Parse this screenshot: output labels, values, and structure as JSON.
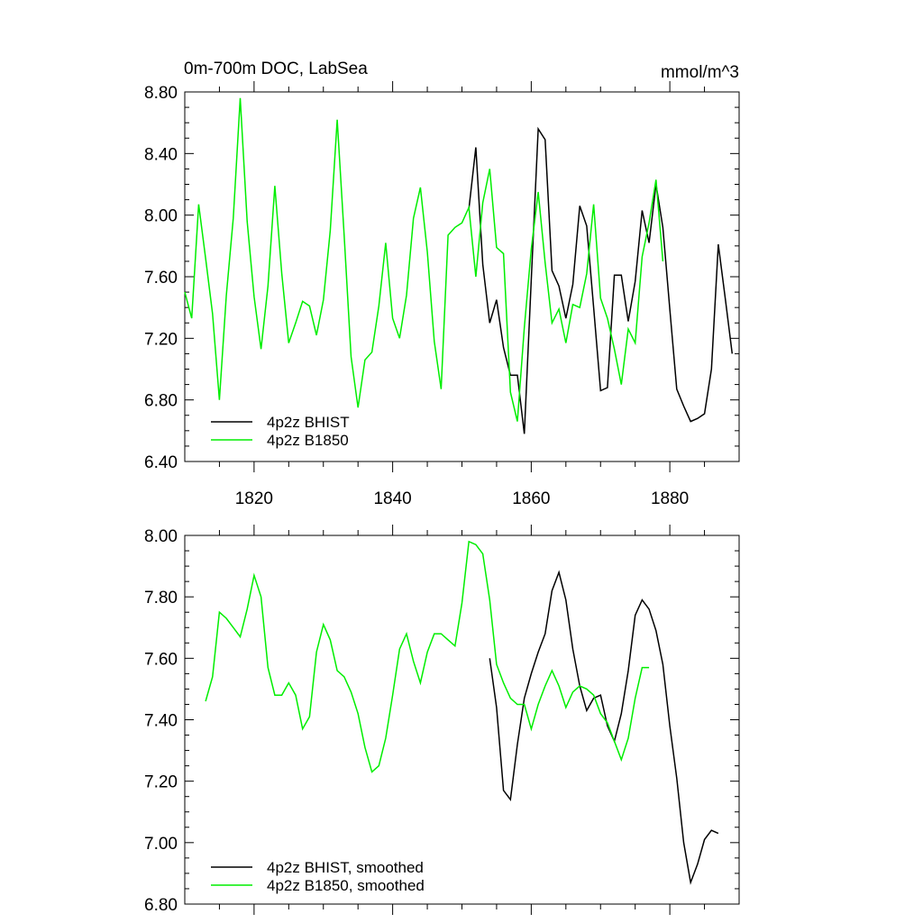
{
  "chart_data": [
    {
      "type": "line",
      "title": "0m-700m DOC, LabSea",
      "units": "mmol/m^3",
      "xlim": [
        1810,
        1890
      ],
      "ylim": [
        6.4,
        8.8
      ],
      "y_ticks": [
        6.4,
        6.8,
        7.2,
        7.6,
        8.0,
        8.4,
        8.8
      ],
      "y_tick_labels": [
        "6.40",
        "6.80",
        "7.20",
        "7.60",
        "8.00",
        "8.40",
        "8.80"
      ],
      "x_ticks": [
        1820,
        1840,
        1860,
        1880
      ],
      "x_tick_labels": [
        "1820",
        "1840",
        "1860",
        "1880"
      ],
      "legend_position": "bottom-left",
      "series": [
        {
          "name": "4p2z BHIST",
          "color": "#000000",
          "x": [
            1851,
            1852,
            1853,
            1854,
            1855,
            1856,
            1857,
            1858,
            1859,
            1860,
            1861,
            1862,
            1863,
            1864,
            1865,
            1866,
            1867,
            1868,
            1869,
            1870,
            1871,
            1872,
            1873,
            1874,
            1875,
            1876,
            1877,
            1878,
            1879,
            1880,
            1881,
            1882,
            1883,
            1884,
            1885,
            1886,
            1887,
            1888,
            1889
          ],
          "y": [
            8.04,
            8.44,
            7.68,
            7.3,
            7.45,
            7.14,
            6.96,
            6.96,
            6.58,
            7.58,
            8.56,
            8.49,
            7.64,
            7.54,
            7.33,
            7.55,
            8.06,
            7.93,
            7.4,
            6.86,
            6.88,
            7.61,
            7.61,
            7.31,
            7.57,
            8.03,
            7.82,
            8.2,
            7.92,
            7.39,
            6.87,
            6.76,
            6.66,
            6.68,
            6.71,
            7.0,
            7.81,
            7.46,
            7.1
          ]
        },
        {
          "name": "4p2z B1850",
          "color": "#00ee00",
          "x": [
            1810,
            1811,
            1812,
            1813,
            1814,
            1815,
            1816,
            1817,
            1818,
            1819,
            1820,
            1821,
            1822,
            1823,
            1824,
            1825,
            1826,
            1827,
            1828,
            1829,
            1830,
            1831,
            1832,
            1833,
            1834,
            1835,
            1836,
            1837,
            1838,
            1839,
            1840,
            1841,
            1842,
            1843,
            1844,
            1845,
            1846,
            1847,
            1848,
            1849,
            1850,
            1851,
            1852,
            1853,
            1854,
            1855,
            1856,
            1857,
            1858,
            1859,
            1860,
            1861,
            1862,
            1863,
            1864,
            1865,
            1866,
            1867,
            1868,
            1869,
            1870,
            1871,
            1872,
            1873,
            1874,
            1875,
            1876,
            1877,
            1878,
            1879
          ],
          "y": [
            7.5,
            7.33,
            8.07,
            7.72,
            7.36,
            6.8,
            7.48,
            7.98,
            8.76,
            7.96,
            7.47,
            7.13,
            7.54,
            8.19,
            7.62,
            7.17,
            7.3,
            7.44,
            7.41,
            7.22,
            7.45,
            7.9,
            8.62,
            7.87,
            7.08,
            6.75,
            7.06,
            7.11,
            7.41,
            7.82,
            7.33,
            7.2,
            7.48,
            7.98,
            8.18,
            7.76,
            7.18,
            6.87,
            7.87,
            7.92,
            7.95,
            8.05,
            7.6,
            8.08,
            8.3,
            7.79,
            7.75,
            6.85,
            6.66,
            7.27,
            7.78,
            8.15,
            7.69,
            7.3,
            7.39,
            7.17,
            7.42,
            7.4,
            7.62,
            8.07,
            7.46,
            7.33,
            7.13,
            6.9,
            7.26,
            7.17,
            7.73,
            7.95,
            8.23,
            7.7
          ]
        }
      ]
    },
    {
      "type": "line",
      "xlim": [
        1810,
        1890
      ],
      "ylim": [
        6.8,
        8.0
      ],
      "y_ticks": [
        6.8,
        7.0,
        7.2,
        7.4,
        7.6,
        7.8,
        8.0
      ],
      "y_tick_labels": [
        "6.80",
        "7.00",
        "7.20",
        "7.40",
        "7.60",
        "7.80",
        "8.00"
      ],
      "x_ticks": [
        1820,
        1840,
        1860,
        1880
      ],
      "legend_position": "bottom-left",
      "series": [
        {
          "name": "4p2z BHIST, smoothed",
          "color": "#000000",
          "x": [
            1854,
            1855,
            1856,
            1857,
            1858,
            1859,
            1860,
            1861,
            1862,
            1863,
            1864,
            1865,
            1866,
            1867,
            1868,
            1869,
            1870,
            1871,
            1872,
            1873,
            1874,
            1875,
            1876,
            1877,
            1878,
            1879,
            1880,
            1881,
            1882,
            1883,
            1884,
            1885,
            1886,
            1887
          ],
          "y": [
            7.6,
            7.44,
            7.17,
            7.14,
            7.32,
            7.47,
            7.55,
            7.62,
            7.68,
            7.82,
            7.88,
            7.79,
            7.63,
            7.51,
            7.43,
            7.47,
            7.48,
            7.38,
            7.33,
            7.42,
            7.56,
            7.74,
            7.79,
            7.76,
            7.69,
            7.58,
            7.38,
            7.21,
            7.0,
            6.87,
            6.93,
            7.01,
            7.04,
            7.03
          ]
        },
        {
          "name": "4p2z B1850, smoothed",
          "color": "#00ee00",
          "x": [
            1813,
            1814,
            1815,
            1816,
            1817,
            1818,
            1819,
            1820,
            1821,
            1822,
            1823,
            1824,
            1825,
            1826,
            1827,
            1828,
            1829,
            1830,
            1831,
            1832,
            1833,
            1834,
            1835,
            1836,
            1837,
            1838,
            1839,
            1840,
            1841,
            1842,
            1843,
            1844,
            1845,
            1846,
            1847,
            1848,
            1849,
            1850,
            1851,
            1852,
            1853,
            1854,
            1855,
            1856,
            1857,
            1858,
            1859,
            1860,
            1861,
            1862,
            1863,
            1864,
            1865,
            1866,
            1867,
            1868,
            1869,
            1870,
            1871,
            1872,
            1873,
            1874,
            1875,
            1876,
            1877
          ],
          "y": [
            7.46,
            7.54,
            7.75,
            7.73,
            7.7,
            7.67,
            7.76,
            7.87,
            7.8,
            7.57,
            7.48,
            7.48,
            7.52,
            7.48,
            7.37,
            7.41,
            7.62,
            7.71,
            7.66,
            7.56,
            7.54,
            7.49,
            7.42,
            7.31,
            7.23,
            7.25,
            7.34,
            7.48,
            7.63,
            7.68,
            7.59,
            7.52,
            7.62,
            7.68,
            7.68,
            7.66,
            7.64,
            7.78,
            7.98,
            7.97,
            7.94,
            7.79,
            7.58,
            7.52,
            7.47,
            7.45,
            7.45,
            7.37,
            7.45,
            7.51,
            7.56,
            7.51,
            7.44,
            7.49,
            7.51,
            7.5,
            7.48,
            7.42,
            7.39,
            7.33,
            7.27,
            7.34,
            7.47,
            7.57,
            7.57
          ]
        }
      ]
    }
  ]
}
